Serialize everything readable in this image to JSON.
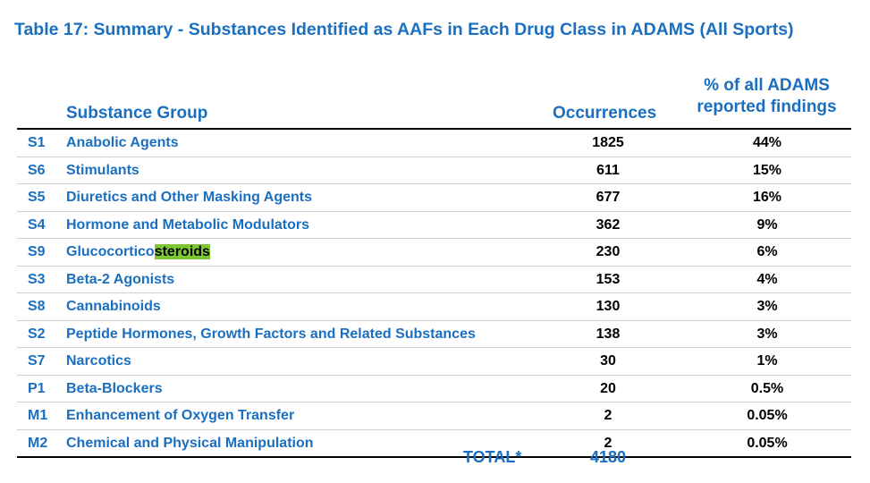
{
  "title": "Table 17: Summary - Substances Identified as AAFs in Each Drug Class in ADAMS (All Sports)",
  "headers": {
    "group": "Substance Group",
    "occurrences": "Occurrences",
    "pct_line1": "% of all ADAMS",
    "pct_line2": "reported findings"
  },
  "rows": [
    {
      "code": "S1",
      "name": "Anabolic Agents",
      "occurrences": "1825",
      "pct": "44%"
    },
    {
      "code": "S6",
      "name": "Stimulants",
      "occurrences": "611",
      "pct": "15%"
    },
    {
      "code": "S5",
      "name": "Diuretics and Other Masking Agents",
      "occurrences": "677",
      "pct": "16%"
    },
    {
      "code": "S4",
      "name": "Hormone and Metabolic Modulators",
      "occurrences": "362",
      "pct": "9%"
    },
    {
      "code": "S9",
      "name_plain": "Glucocortico",
      "name_highlight": "steroids",
      "occurrences": "230",
      "pct": "6%"
    },
    {
      "code": "S3",
      "name": "Beta-2 Agonists",
      "occurrences": "153",
      "pct": "4%"
    },
    {
      "code": "S8",
      "name": "Cannabinoids",
      "occurrences": "130",
      "pct": "3%"
    },
    {
      "code": "S2",
      "name": "Peptide Hormones, Growth Factors and Related Substances",
      "occurrences": "138",
      "pct": "3%"
    },
    {
      "code": "S7",
      "name": "Narcotics",
      "occurrences": "30",
      "pct": "1%"
    },
    {
      "code": "P1",
      "name": "Beta-Blockers",
      "occurrences": "20",
      "pct": "0.5%"
    },
    {
      "code": "M1",
      "name": "Enhancement of Oxygen Transfer",
      "occurrences": "2",
      "pct": "0.05%"
    },
    {
      "code": "M2",
      "name": "Chemical and Physical Manipulation",
      "occurrences": "2",
      "pct": "0.05%"
    }
  ],
  "total": {
    "label": "TOTAL*",
    "value": "4180"
  },
  "colors": {
    "heading_blue": "#1a6fc0",
    "highlight": "#7ec734"
  }
}
